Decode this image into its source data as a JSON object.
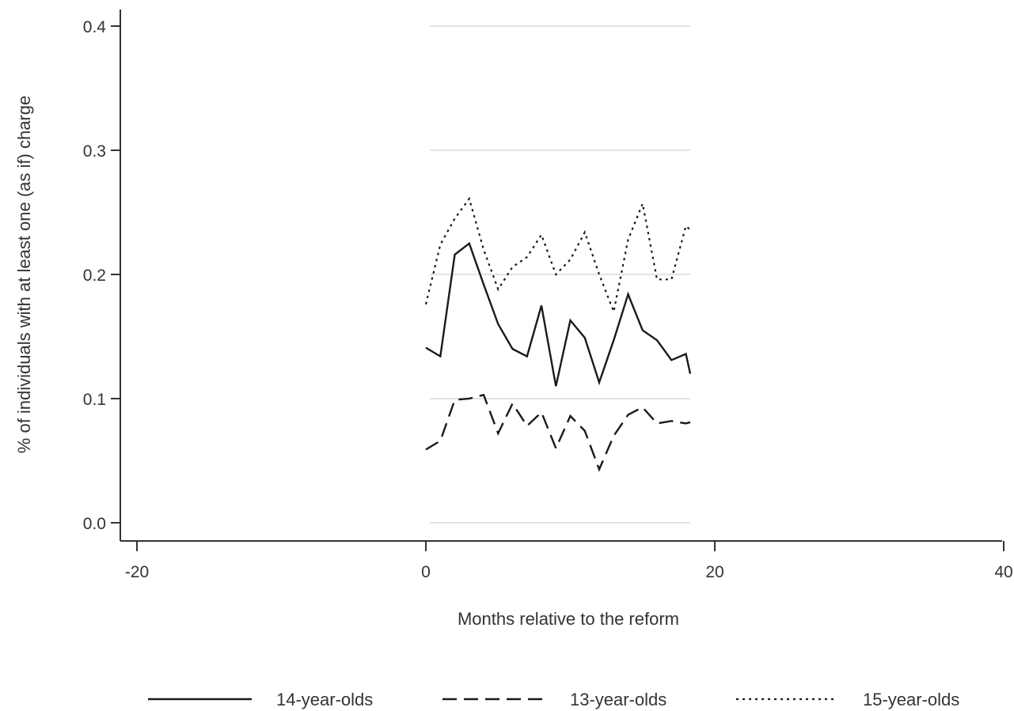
{
  "chart_data": {
    "type": "line",
    "xlabel": "Months relative to the reform",
    "ylabel": "% of individuals with at least one (as if) charge",
    "xlim": [
      -21,
      40.4
    ],
    "ylim": [
      -0.015,
      0.41
    ],
    "x_ticks": [
      -20,
      0,
      20,
      40
    ],
    "x_tick_labels": [
      "-20",
      "0",
      "20",
      "40"
    ],
    "y_ticks": [
      0.0,
      0.1,
      0.2,
      0.3,
      0.4
    ],
    "y_tick_labels": [
      "0.0",
      "0.1",
      "0.2",
      "0.3",
      "0.4"
    ],
    "grid": true,
    "legend_position": "bottom",
    "series": [
      {
        "name": "14-year-olds",
        "style": "solid",
        "color": "#1a1a1a",
        "x": [
          0,
          1,
          2,
          3,
          4,
          5,
          6,
          7,
          8,
          9,
          10,
          11,
          12,
          13,
          14,
          15,
          16,
          17,
          18,
          18.3
        ],
        "y": [
          0.141,
          0.134,
          0.216,
          0.225,
          0.192,
          0.16,
          0.14,
          0.134,
          0.175,
          0.11,
          0.163,
          0.149,
          0.113,
          0.147,
          0.184,
          0.155,
          0.147,
          0.131,
          0.136,
          0.12
        ]
      },
      {
        "name": "13-year-olds",
        "style": "dashed",
        "color": "#1a1a1a",
        "x": [
          0,
          1,
          2,
          3,
          4,
          5,
          6,
          7,
          8,
          9,
          10,
          11,
          12,
          13,
          14,
          15,
          16,
          17,
          18,
          18.3
        ],
        "y": [
          0.059,
          0.066,
          0.099,
          0.1,
          0.103,
          0.072,
          0.096,
          0.078,
          0.089,
          0.06,
          0.086,
          0.074,
          0.043,
          0.07,
          0.087,
          0.093,
          0.08,
          0.082,
          0.08,
          0.081
        ]
      },
      {
        "name": "15-year-olds",
        "style": "dotted",
        "color": "#1a1a1a",
        "x": [
          0,
          1,
          2,
          3,
          4,
          5,
          6,
          7,
          8,
          9,
          10,
          11,
          12,
          13,
          14,
          15,
          16,
          17,
          18,
          18.3
        ],
        "y": [
          0.176,
          0.224,
          0.245,
          0.261,
          0.22,
          0.188,
          0.206,
          0.214,
          0.232,
          0.2,
          0.212,
          0.234,
          0.2,
          0.17,
          0.228,
          0.257,
          0.196,
          0.196,
          0.239,
          0.236
        ]
      }
    ]
  }
}
